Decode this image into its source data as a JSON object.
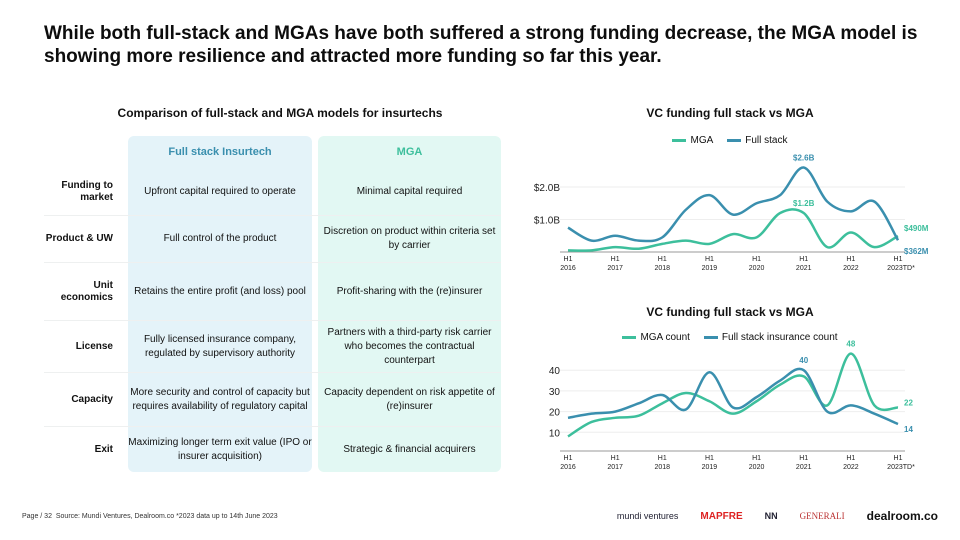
{
  "title": "While both full-stack and MGAs have both suffered a strong funding decrease, the MGA model is showing more resilience and attracted more funding so far this year.",
  "table": {
    "title": "Comparison of full-stack and MGA models for insurtechs",
    "headers": [
      "Full stack Insurtech",
      "MGA"
    ],
    "rows": [
      {
        "label": "Funding to market",
        "full": "Upfront capital required to operate",
        "mga": "Minimal capital required"
      },
      {
        "label": "Product & UW",
        "full": "Full control of the product",
        "mga": "Discretion on product within criteria set by carrier"
      },
      {
        "label": "Unit economics",
        "full": "Retains the entire profit (and loss) pool",
        "mga": "Profit-sharing with the (re)insurer"
      },
      {
        "label": "License",
        "full": "Fully licensed insurance company, regulated by supervisory authority",
        "mga": "Partners with a third-party risk carrier who becomes the contractual counterpart"
      },
      {
        "label": "Capacity",
        "full": "More security and control of capacity but requires availability of regulatory capital",
        "mga": "Capacity dependent on risk appetite of (re)insurer"
      },
      {
        "label": "Exit",
        "full": "Maximizing longer term exit value (IPO or insurer acquisition)",
        "mga": "Strategic & financial acquirers"
      }
    ]
  },
  "colors": {
    "mga": "#3dbf9c",
    "full": "#3a8fae"
  },
  "chart_data": [
    {
      "type": "line",
      "title": "VC funding full stack vs MGA",
      "ylabel": "",
      "ylim": [
        0,
        2.7
      ],
      "yticks": [
        {
          "v": 1.0,
          "label": "$1.0B"
        },
        {
          "v": 2.0,
          "label": "$2.0B"
        }
      ],
      "xticks": [
        "H1 2016",
        "H1 2017",
        "H1 2018",
        "H1 2019",
        "H1 2020",
        "H1 2021",
        "H1 2022",
        "H1 2023TD*"
      ],
      "x": [
        "H1 2016",
        "H2 2016",
        "H1 2017",
        "H2 2017",
        "H1 2018",
        "H2 2018",
        "H1 2019",
        "H2 2019",
        "H1 2020",
        "H2 2020",
        "H1 2021",
        "H2 2021",
        "H1 2022",
        "H2 2022",
        "H1 2023"
      ],
      "series": [
        {
          "name": "MGA",
          "values": [
            0.05,
            0.05,
            0.15,
            0.1,
            0.25,
            0.35,
            0.25,
            0.55,
            0.45,
            1.2,
            1.2,
            0.15,
            0.6,
            0.15,
            0.49
          ]
        },
        {
          "name": "Full stack",
          "values": [
            0.75,
            0.35,
            0.5,
            0.35,
            0.45,
            1.3,
            1.75,
            1.15,
            1.5,
            1.75,
            2.6,
            1.55,
            1.25,
            1.55,
            0.362
          ]
        }
      ],
      "annotations": [
        {
          "series": 1,
          "index": 10,
          "text": "$2.6B"
        },
        {
          "series": 0,
          "index": 10,
          "text": "$1.2B"
        },
        {
          "series": 0,
          "index": 14,
          "text": "$490M"
        },
        {
          "series": 1,
          "index": 14,
          "text": "$362M"
        }
      ]
    },
    {
      "type": "line",
      "title": "VC funding full stack vs MGA",
      "ylim": [
        0,
        50
      ],
      "yticks": [
        {
          "v": 10,
          "label": "10"
        },
        {
          "v": 20,
          "label": "20"
        },
        {
          "v": 30,
          "label": "30"
        },
        {
          "v": 40,
          "label": "40"
        }
      ],
      "xticks": [
        "H1 2016",
        "H1 2017",
        "H1 2018",
        "H1 2019",
        "H1 2020",
        "H1 2021",
        "H1 2022",
        "H1 2023TD*"
      ],
      "series": [
        {
          "name": "MGA count",
          "values": [
            8,
            15,
            17,
            18,
            24,
            29,
            25,
            19,
            25,
            33,
            37,
            23,
            48,
            23,
            22
          ]
        },
        {
          "name": "Full stack insurance count",
          "values": [
            17,
            19,
            20,
            24,
            28,
            21,
            39,
            22,
            27,
            35,
            40,
            20,
            23,
            19,
            14
          ]
        }
      ],
      "annotations": [
        {
          "series": 1,
          "index": 10,
          "text": "40"
        },
        {
          "series": 0,
          "index": 12,
          "text": "48"
        },
        {
          "series": 0,
          "index": 14,
          "text": "22"
        },
        {
          "series": 1,
          "index": 14,
          "text": "14"
        }
      ]
    }
  ],
  "footer": {
    "page": "Page / 32",
    "source": "Source: Mundi Ventures, Dealroom.co  *2023 data up to 14th June 2023"
  },
  "logos": [
    "mundi ventures",
    "MAPFRE",
    "NN",
    "GENERALI",
    "dealroom.co"
  ]
}
